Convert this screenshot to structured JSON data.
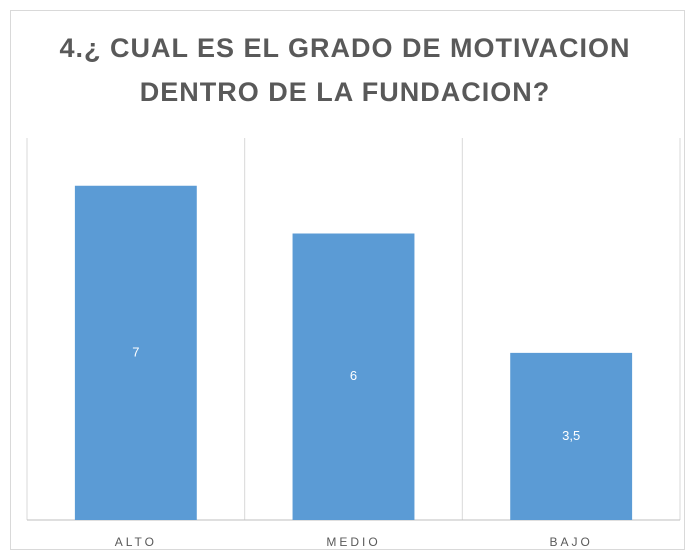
{
  "chart_data": {
    "type": "bar",
    "title": [
      "4.¿ CUAL ES EL GRADO DE MOTIVACION",
      "DENTRO DE LA FUNDACION?"
    ],
    "categories": [
      "ALTO",
      "MEDIO",
      "BAJO"
    ],
    "values": [
      7,
      6,
      3.5
    ],
    "value_labels": [
      "7",
      "6",
      "3,5"
    ],
    "color": "#5b9bd5",
    "ylim": [
      0,
      8
    ]
  }
}
